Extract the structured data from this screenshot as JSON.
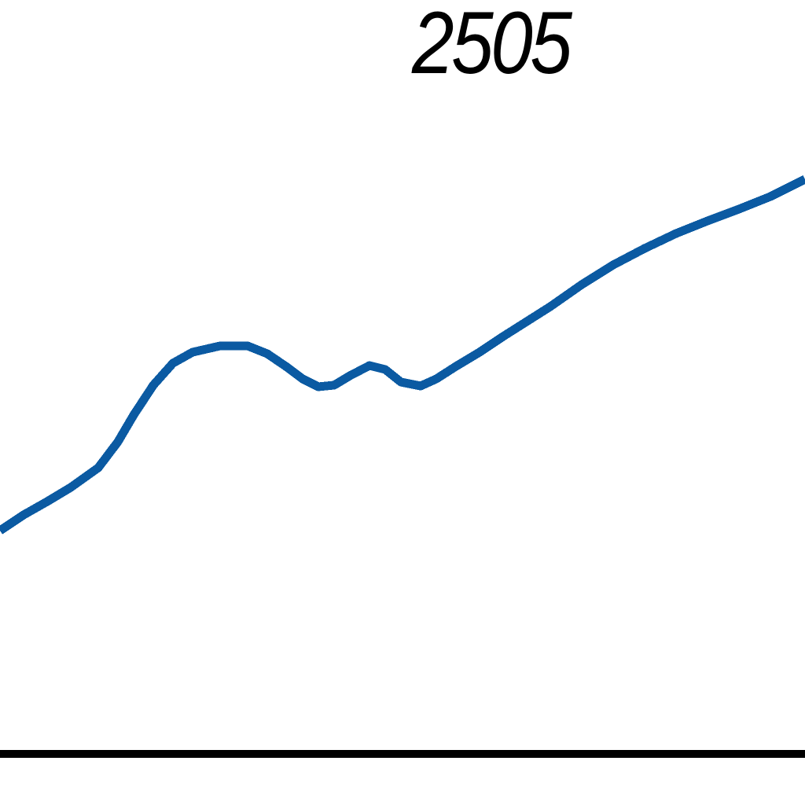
{
  "chart_data": {
    "type": "line",
    "title": "2505",
    "xlabel": "",
    "ylabel": "",
    "grid": false,
    "series": [
      {
        "color": "#0b5aa2",
        "points": [
          [
            0,
            675
          ],
          [
            30,
            655
          ],
          [
            60,
            638
          ],
          [
            90,
            620
          ],
          [
            125,
            595
          ],
          [
            150,
            562
          ],
          [
            170,
            528
          ],
          [
            195,
            490
          ],
          [
            220,
            462
          ],
          [
            245,
            448
          ],
          [
            280,
            440
          ],
          [
            315,
            440
          ],
          [
            340,
            450
          ],
          [
            365,
            467
          ],
          [
            385,
            482
          ],
          [
            405,
            492
          ],
          [
            425,
            490
          ],
          [
            445,
            478
          ],
          [
            470,
            465
          ],
          [
            490,
            470
          ],
          [
            510,
            486
          ],
          [
            535,
            491
          ],
          [
            555,
            482
          ],
          [
            580,
            466
          ],
          [
            610,
            448
          ],
          [
            640,
            428
          ],
          [
            670,
            409
          ],
          [
            700,
            390
          ],
          [
            740,
            362
          ],
          [
            780,
            337
          ],
          [
            820,
            316
          ],
          [
            860,
            297
          ],
          [
            900,
            281
          ],
          [
            940,
            266
          ],
          [
            980,
            250
          ],
          [
            1024,
            228
          ]
        ]
      }
    ],
    "baseline_color": "#000000"
  }
}
